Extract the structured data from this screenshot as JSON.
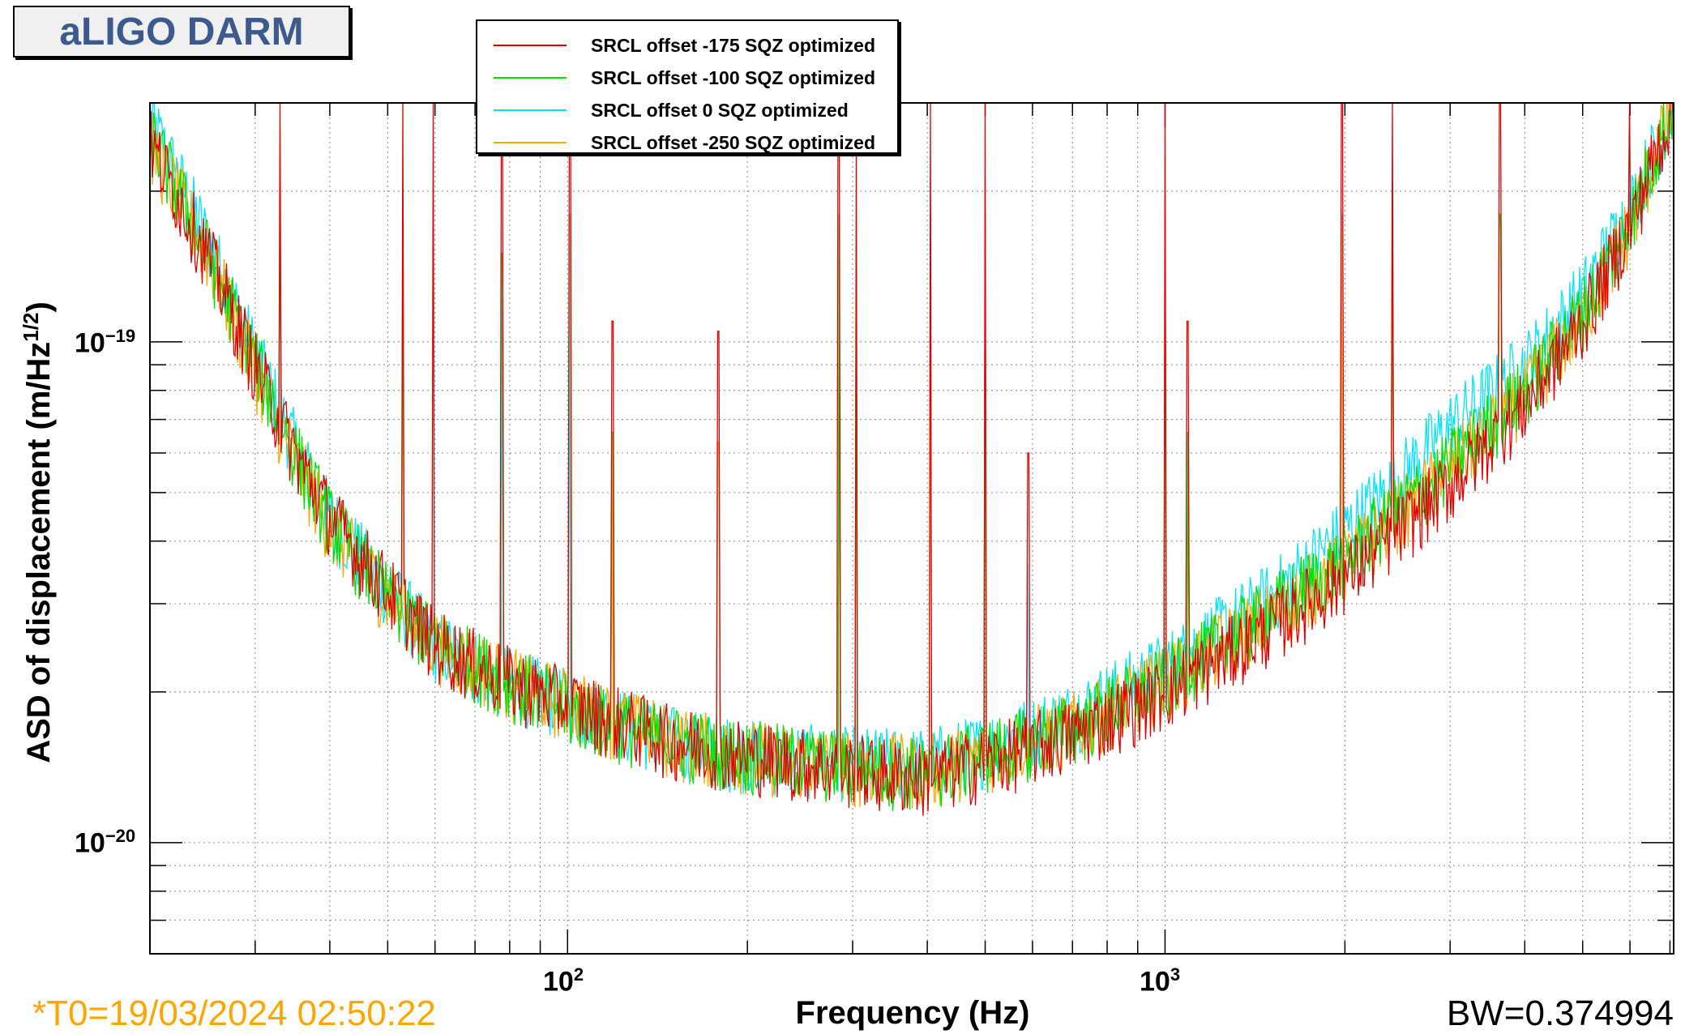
{
  "title": "aLIGO DARM",
  "footer": {
    "t0": "*T0=19/03/2024 02:50:22",
    "bw": "BW=0.374994"
  },
  "chart_data": {
    "type": "line",
    "title": "aLIGO DARM",
    "xlabel": "Frequency (Hz)",
    "ylabel_main": "ASD of displacement (m/Hz",
    "ylabel_sup": "1/2",
    "ylabel_close": ")",
    "xscale": "log",
    "yscale": "log",
    "xlim": [
      20,
      7100
    ],
    "ylim": [
      6e-21,
      3e-19
    ],
    "grid": true,
    "legend_position": "top-center",
    "x_ticks": [
      {
        "base": "10",
        "exp": "2",
        "value": 100
      },
      {
        "base": "10",
        "exp": "3",
        "value": 1000
      }
    ],
    "y_ticks": [
      {
        "base": "10",
        "exp": "−19",
        "value": 1e-19
      },
      {
        "base": "10",
        "exp": "−20",
        "value": 1e-20
      }
    ],
    "x": [
      20,
      25,
      30,
      35,
      40,
      50,
      60,
      80,
      100,
      150,
      200,
      300,
      400,
      500,
      700,
      1000,
      1500,
      2000,
      3000,
      4000,
      5000,
      6000,
      7100
    ],
    "series": [
      {
        "name": "SRCL offset -175 SQZ optimized",
        "color": "#e00000",
        "values": [
          2.5e-19,
          1.5e-19,
          9e-20,
          6e-20,
          4.5e-20,
          3.2e-20,
          2.5e-20,
          2.1e-20,
          1.9e-20,
          1.6e-20,
          1.5e-20,
          1.4e-20,
          1.35e-20,
          1.45e-20,
          1.65e-20,
          2e-20,
          2.7e-20,
          3.4e-20,
          5.2e-20,
          7.5e-20,
          1.1e-19,
          1.7e-19,
          3e-19
        ]
      },
      {
        "name": "SRCL offset -100 SQZ optimized",
        "color": "#00e000",
        "values": [
          2.6e-19,
          1.5e-19,
          9.2e-20,
          6e-20,
          4.4e-20,
          3.1e-20,
          2.5e-20,
          2.1e-20,
          1.85e-20,
          1.6e-20,
          1.5e-20,
          1.42e-20,
          1.38e-20,
          1.5e-20,
          1.7e-20,
          2.1e-20,
          2.9e-20,
          3.7e-20,
          5.7e-20,
          8e-20,
          1.15e-19,
          1.75e-19,
          3e-19
        ]
      },
      {
        "name": "SRCL offset 0 SQZ optimized",
        "color": "#00e5ff",
        "values": [
          2.8e-19,
          1.6e-19,
          9.5e-20,
          6.2e-20,
          4.5e-20,
          3.2e-20,
          2.5e-20,
          2.1e-20,
          1.9e-20,
          1.6e-20,
          1.5e-20,
          1.45e-20,
          1.45e-20,
          1.55e-20,
          1.8e-20,
          2.25e-20,
          3.1e-20,
          4.2e-20,
          6.8e-20,
          9e-20,
          1.25e-19,
          1.85e-19,
          3e-19
        ]
      },
      {
        "name": "SRCL offset -250 SQZ optimized",
        "color": "#ffa500",
        "values": [
          2.5e-19,
          1.5e-19,
          8.8e-20,
          5.8e-20,
          4.3e-20,
          3.1e-20,
          2.5e-20,
          2.1e-20,
          1.9e-20,
          1.6e-20,
          1.5e-20,
          1.42e-20,
          1.4e-20,
          1.5e-20,
          1.7e-20,
          2.1e-20,
          2.85e-20,
          3.6e-20,
          5.6e-20,
          7.9e-20,
          1.12e-19,
          1.7e-19,
          3e-19
        ]
      }
    ],
    "lines": [
      {
        "f": 33,
        "asd": 3e-19
      },
      {
        "f": 53,
        "asd": 3e-19
      },
      {
        "f": 59.6,
        "asd": 3e-19
      },
      {
        "f": 77.7,
        "asd": 2.5e-19
      },
      {
        "f": 101,
        "asd": 3e-19
      },
      {
        "f": 119,
        "asd": 1.1e-19
      },
      {
        "f": 179,
        "asd": 1.05e-19
      },
      {
        "f": 284,
        "asd": 3e-19
      },
      {
        "f": 304,
        "asd": 2.6e-19
      },
      {
        "f": 405,
        "asd": 3e-19
      },
      {
        "f": 500,
        "asd": 3e-19
      },
      {
        "f": 590,
        "asd": 6e-20
      },
      {
        "f": 1000,
        "asd": 3e-19
      },
      {
        "f": 1090,
        "asd": 1.1e-19
      },
      {
        "f": 1980,
        "asd": 3e-19
      },
      {
        "f": 2400,
        "asd": 3e-19
      },
      {
        "f": 3640,
        "asd": 3e-19
      },
      {
        "f": 5990,
        "asd": 3e-19
      }
    ]
  }
}
